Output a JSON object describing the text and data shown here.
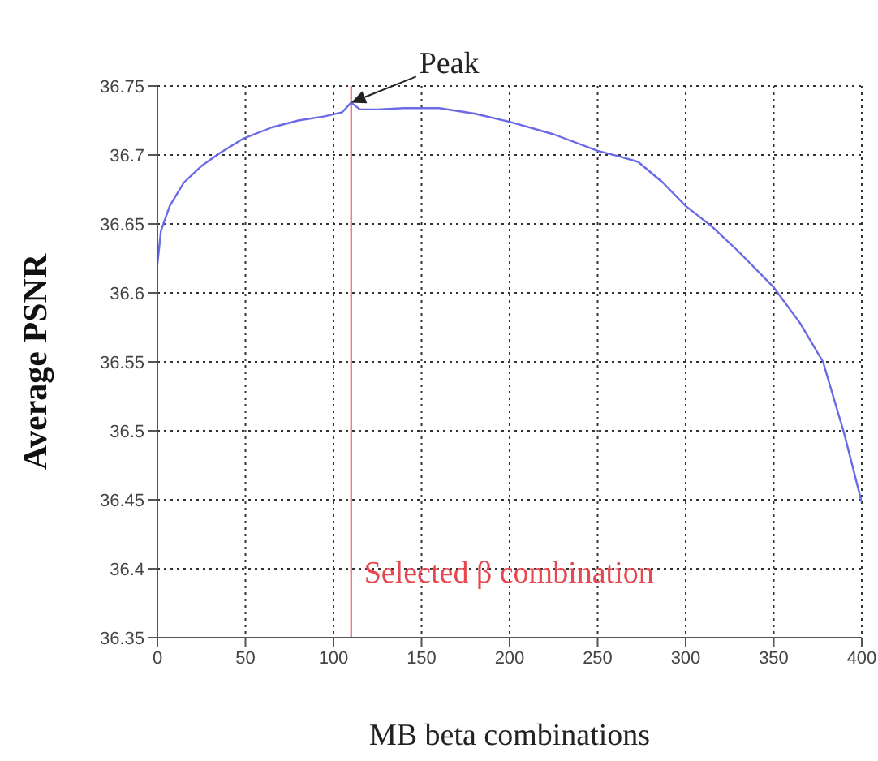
{
  "chart_data": {
    "type": "line",
    "xlabel": "MB beta combinations",
    "ylabel": "Average PSNR",
    "series": [
      {
        "color": "#6a6ae6",
        "x": [
          0,
          2,
          7,
          15,
          25,
          35,
          49,
          65,
          80,
          95,
          105,
          110,
          115,
          125,
          140,
          160,
          180,
          200,
          225,
          250,
          262,
          273,
          287,
          300,
          315,
          330,
          350,
          365,
          378,
          390,
          400
        ],
        "values": [
          36.621,
          36.645,
          36.663,
          36.68,
          36.692,
          36.701,
          36.712,
          36.72,
          36.725,
          36.728,
          36.731,
          36.738,
          36.733,
          36.733,
          36.734,
          36.734,
          36.73,
          36.724,
          36.715,
          36.703,
          36.699,
          36.695,
          36.68,
          36.663,
          36.648,
          36.63,
          36.604,
          36.578,
          36.55,
          36.498,
          36.448
        ]
      }
    ],
    "xlim": [
      0,
      400
    ],
    "xticks": [
      0,
      50,
      100,
      150,
      200,
      250,
      300,
      350,
      400
    ],
    "ylim": [
      36.35,
      36.75
    ],
    "yticks": [
      36.35,
      36.4,
      36.45,
      36.5,
      36.55,
      36.6,
      36.65,
      36.7,
      36.75
    ],
    "grid": true,
    "marker": "none",
    "line_style": "solid",
    "ref_lines": [
      {
        "axis": "x",
        "value": 110,
        "label": "Selected β combination",
        "color": "#e8474f",
        "line_style": "solid"
      }
    ],
    "annotations": [
      {
        "text": "Peak",
        "x": 110,
        "y": 36.738
      }
    ]
  }
}
